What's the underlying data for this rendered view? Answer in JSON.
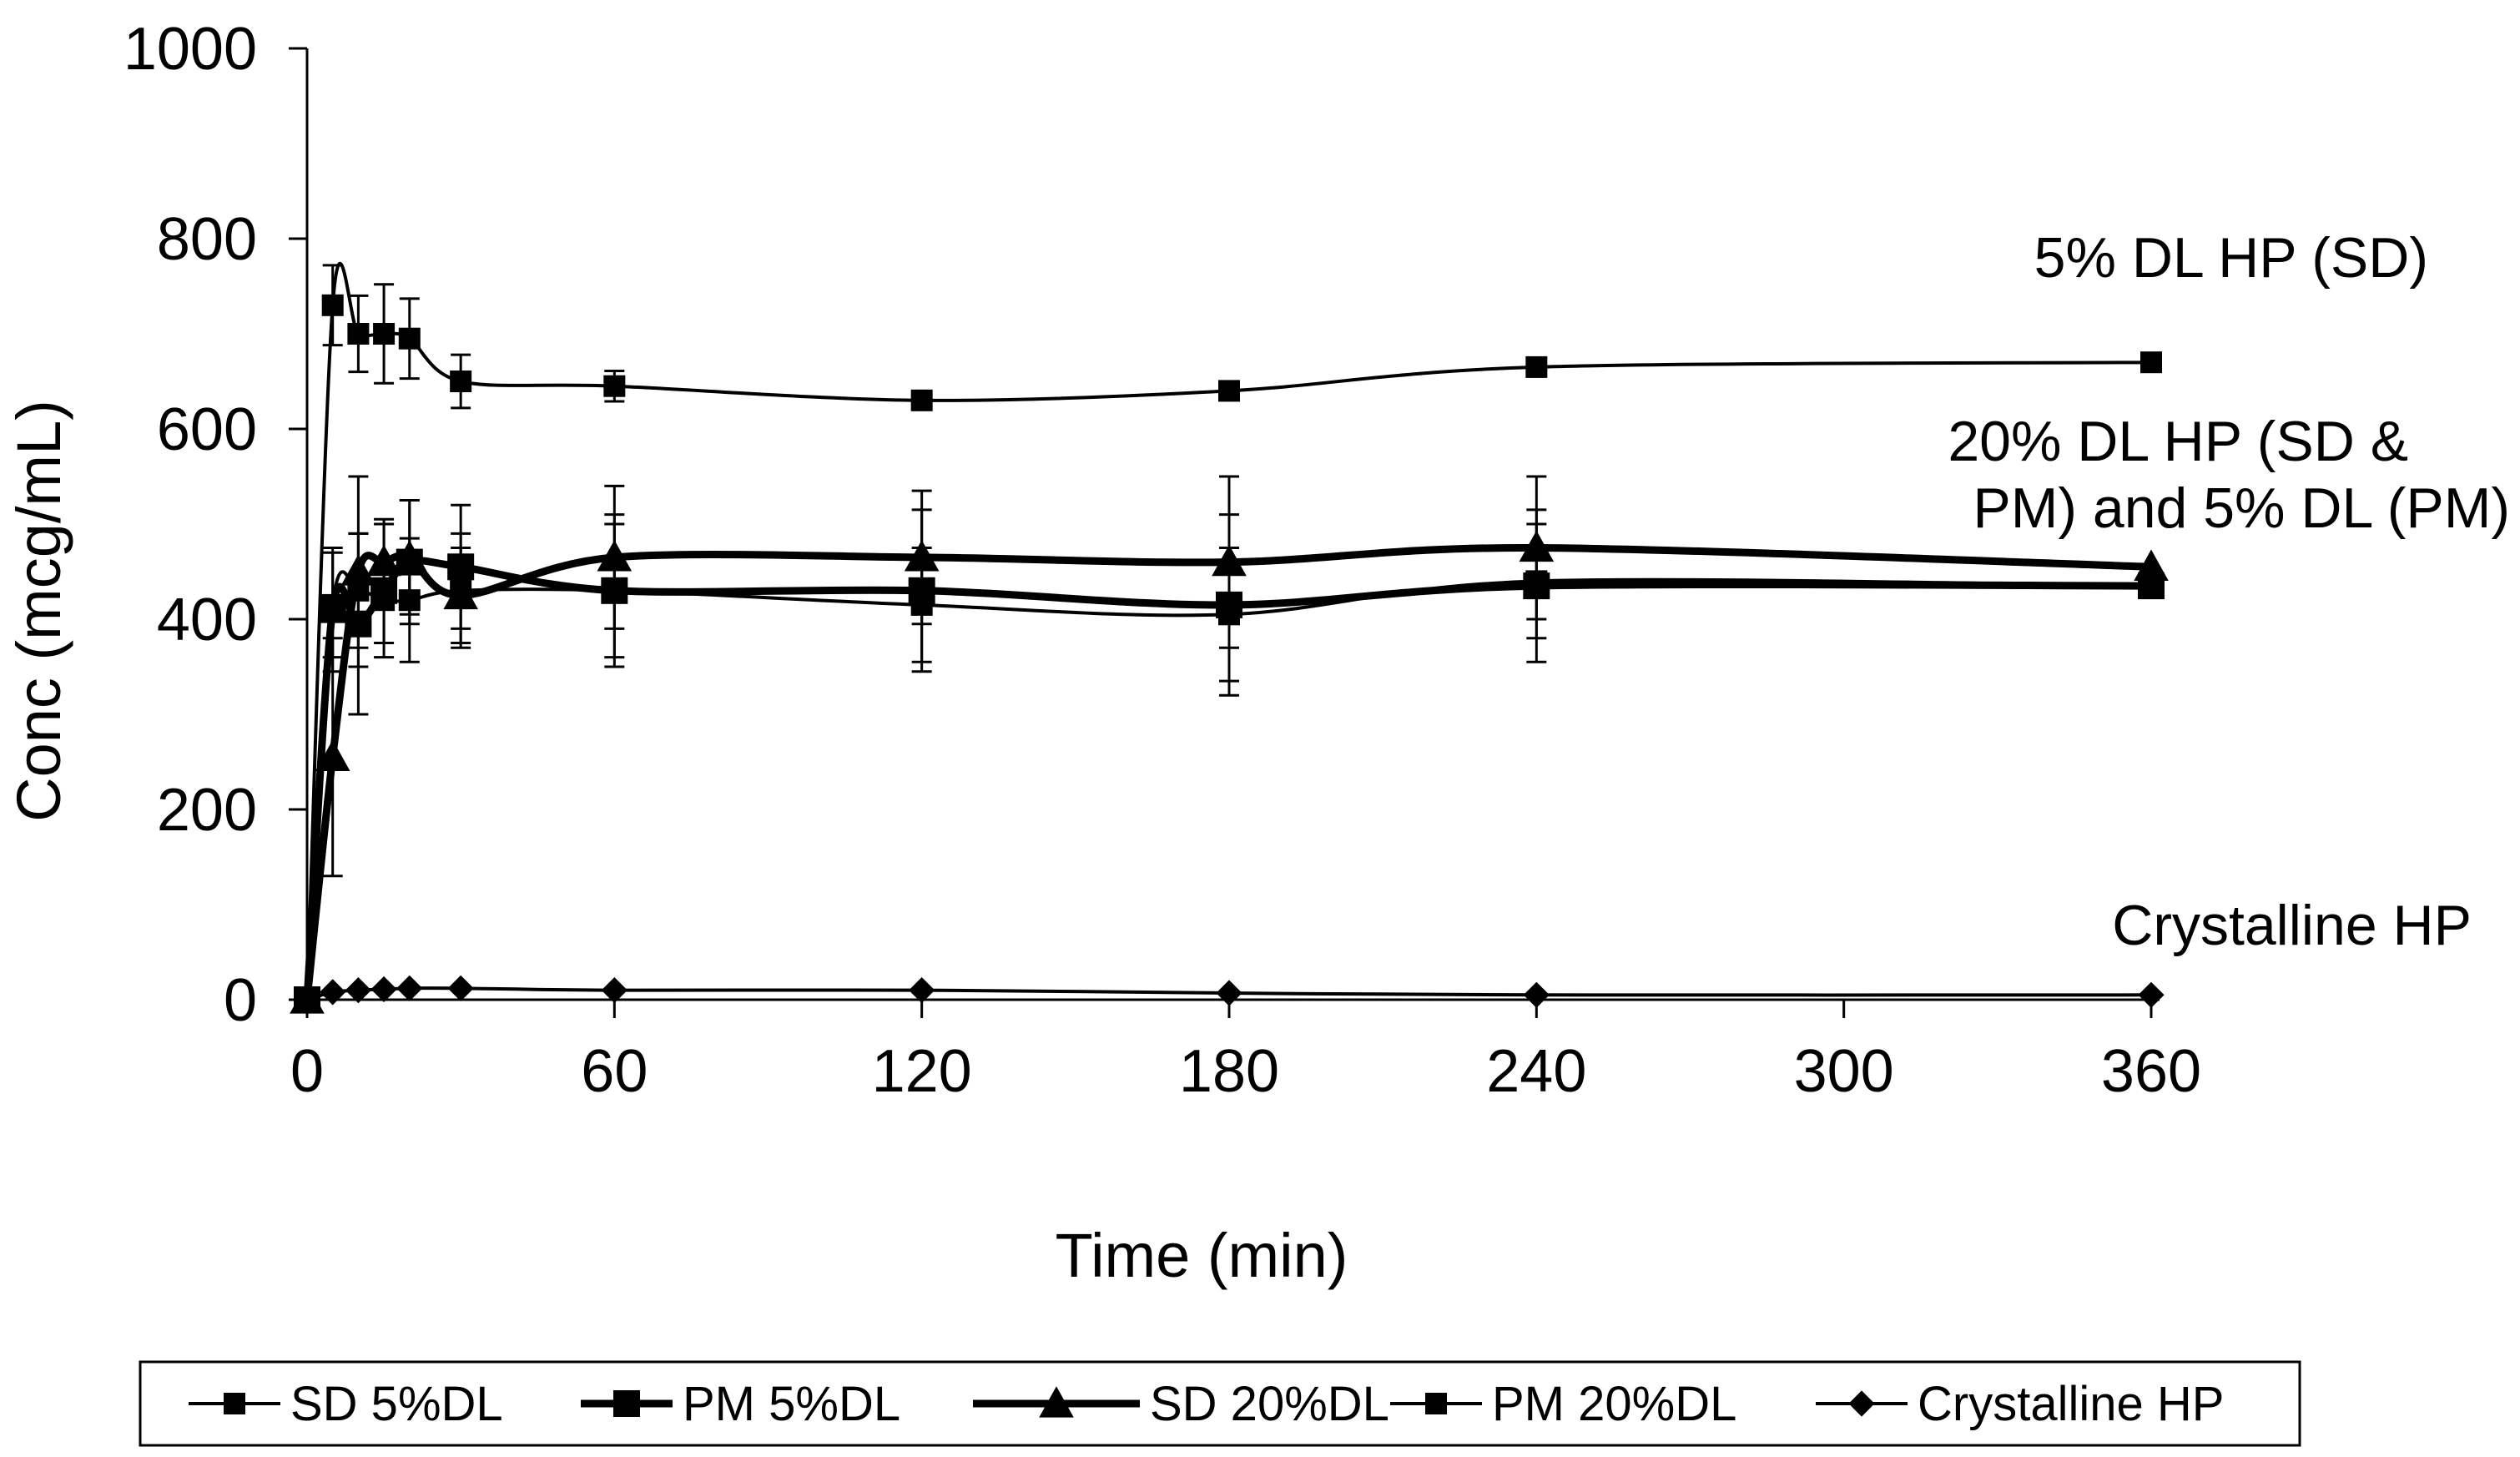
{
  "chart_data": {
    "type": "line",
    "title": "",
    "xlabel": "Time (min)",
    "ylabel": "Conc (mcg/mL)",
    "xlim": [
      0,
      360
    ],
    "ylim": [
      0,
      1000
    ],
    "xticks": [
      0,
      60,
      120,
      180,
      240,
      300,
      360
    ],
    "yticks": [
      0,
      200,
      400,
      600,
      800,
      1000
    ],
    "grid": false,
    "legend_position": "bottom",
    "series": [
      {
        "name": "SD 5%DL",
        "marker": "square",
        "line_weight": "thin",
        "x": [
          0,
          5,
          10,
          15,
          20,
          30,
          60,
          120,
          180,
          240,
          360
        ],
        "y": [
          0,
          730,
          700,
          700,
          695,
          650,
          645,
          630,
          640,
          665,
          670
        ],
        "err": [
          0,
          42,
          40,
          52,
          42,
          28,
          16,
          0,
          0,
          0,
          0
        ]
      },
      {
        "name": "PM 5%DL",
        "marker": "square",
        "line_weight": "thick",
        "x": [
          0,
          5,
          10,
          15,
          20,
          30,
          60,
          120,
          180,
          240,
          360
        ],
        "y": [
          0,
          410,
          395,
          430,
          460,
          455,
          430,
          430,
          415,
          435,
          435
        ],
        "err": [
          0,
          65,
          95,
          70,
          65,
          65,
          80,
          85,
          95,
          80,
          0
        ]
      },
      {
        "name": "SD 20%DL",
        "marker": "triangle",
        "line_weight": "thick",
        "x": [
          0,
          5,
          10,
          15,
          20,
          30,
          60,
          120,
          180,
          240,
          360
        ],
        "y": [
          0,
          255,
          450,
          460,
          465,
          425,
          465,
          465,
          460,
          475,
          455
        ],
        "err": [
          0,
          125,
          100,
          45,
          60,
          50,
          75,
          70,
          90,
          75,
          0
        ]
      },
      {
        "name": "PM 20%DL",
        "marker": "square",
        "line_weight": "thin",
        "x": [
          0,
          5,
          10,
          15,
          20,
          30,
          60,
          120,
          180,
          240,
          360
        ],
        "y": [
          0,
          415,
          430,
          420,
          420,
          430,
          430,
          415,
          405,
          440,
          435
        ],
        "err": [
          0,
          55,
          60,
          45,
          65,
          60,
          70,
          60,
          70,
          60,
          0
        ]
      },
      {
        "name": "Crystalline HP",
        "marker": "diamond",
        "line_weight": "thin",
        "x": [
          0,
          5,
          10,
          15,
          20,
          30,
          60,
          120,
          180,
          240,
          360
        ],
        "y": [
          0,
          8,
          10,
          11,
          12,
          12,
          10,
          10,
          7,
          5,
          5
        ],
        "err": [
          0,
          0,
          0,
          0,
          0,
          0,
          0,
          0,
          0,
          0,
          0
        ]
      }
    ],
    "annotations": [
      {
        "id": "sd5",
        "lines": [
          "5% DL HP (SD)"
        ]
      },
      {
        "id": "mid",
        "lines": [
          "20% DL HP (SD &",
          "PM) and 5% DL (PM)"
        ]
      },
      {
        "id": "cryst",
        "lines": [
          "Crystalline HP"
        ]
      }
    ]
  }
}
